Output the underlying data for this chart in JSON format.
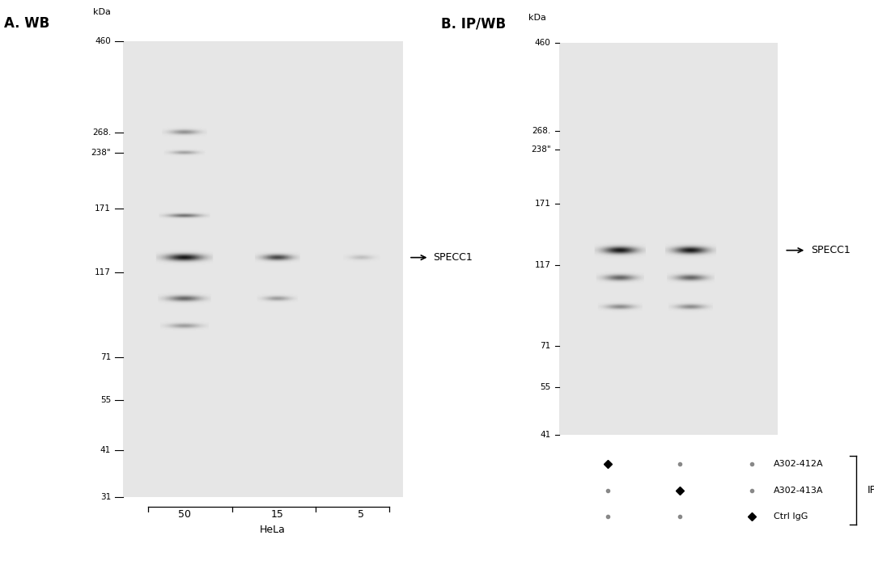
{
  "panel_A_title": "A. WB",
  "panel_B_title": "B. IP/WB",
  "gel_bg_color": "#d8d8d8",
  "outer_bg": "#f0f0f0",
  "white_bg": "#ffffff",
  "panel_A_label": "SPECC1",
  "panel_B_label": "SPECC1",
  "mw_vals_A": [
    460,
    268,
    238,
    171,
    117,
    71,
    55,
    41,
    31
  ],
  "mw_vals_B": [
    460,
    268,
    238,
    171,
    117,
    71,
    55,
    41
  ],
  "lane_labels_A": [
    "50",
    "15",
    "5"
  ],
  "group_label_A": "HeLa",
  "ip_labels": [
    "A302-412A",
    "A302-413A",
    "Ctrl IgG"
  ],
  "ip_group_label": "IP",
  "dot_pattern": [
    [
      true,
      false,
      false
    ],
    [
      false,
      true,
      false
    ],
    [
      false,
      false,
      true
    ]
  ]
}
